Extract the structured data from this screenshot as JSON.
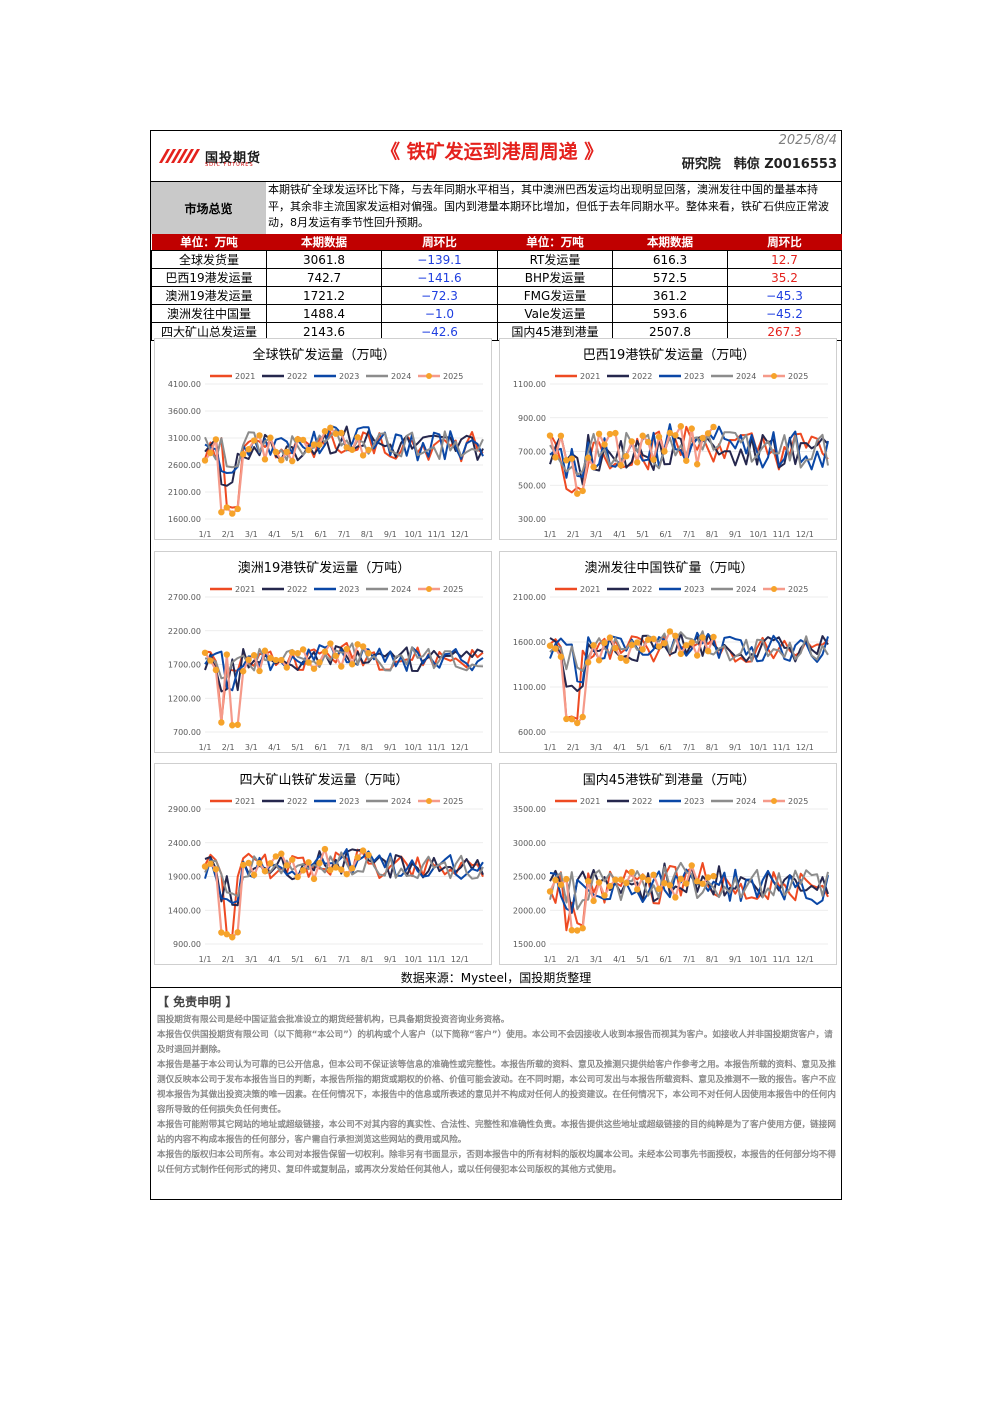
{
  "header": {
    "logo_text": "国投期货",
    "logo_subtext": "SDIC FUTURES",
    "title": "《 铁矿发运到港周周递 》",
    "date": "2025/8/4",
    "author": "研究院　韩倞  Z0016553"
  },
  "summary": {
    "label": "市场总览",
    "text": "本期铁矿全球发运环比下降，与去年同期水平相当，其中澳洲巴西发运均出现明显回落，澳洲发往中国的量基本持平，其余非主流国家发运相对偏强。国内到港量本期环比增加，但低于去年同期水平。整体来看，铁矿石供应正常波动，8月发运有季节性回升预期。"
  },
  "kpi": {
    "headers": [
      "单位：万吨",
      "本期数据",
      "周环比",
      "单位：万吨",
      "本期数据",
      "周环比"
    ],
    "rows": [
      [
        "全球发货量",
        "3061.8",
        "−139.1",
        "RT发运量",
        "616.3",
        "12.7"
      ],
      [
        "巴西19港发运量",
        "742.7",
        "−141.6",
        "BHP发运量",
        "572.5",
        "35.2"
      ],
      [
        "澳洲19港发运量",
        "1721.2",
        "−72.3",
        "FMG发运量",
        "361.2",
        "−45.3"
      ],
      [
        "澳洲发往中国量",
        "1488.4",
        "−1.0",
        "Vale发运量",
        "593.6",
        "−45.2"
      ],
      [
        "四大矿山总发运量",
        "2143.6",
        "−42.6",
        "国内45港到港量",
        "2507.8",
        "267.3"
      ]
    ]
  },
  "legend_colors": {
    "2021": "#ee4a22",
    "2022": "#25274d",
    "2023": "#0a47a6",
    "2024": "#8c8c8c",
    "2025": "#f6a32a",
    "2025_line": "#f59a8a"
  },
  "chart_data": [
    {
      "type": "line",
      "title": "全球铁矿发运量（万吨）",
      "series_names": [
        "2021",
        "2022",
        "2023",
        "2024",
        "2025"
      ],
      "x_ticks": [
        "1/1",
        "2/1",
        "3/1",
        "4/1",
        "5/1",
        "6/1",
        "7/1",
        "8/1",
        "9/1",
        "10/1",
        "11/1",
        "12/1"
      ],
      "y_ticks": [
        "1600.00",
        "2100.00",
        "2600.00",
        "3100.00",
        "3600.00",
        "4100.00"
      ],
      "ylim": [
        1600,
        4100
      ],
      "base": 2950,
      "amp": 280,
      "dip": [
        1700,
        2200,
        2450,
        2550
      ]
    },
    {
      "type": "line",
      "title": "巴西19港铁矿发运量（万吨）",
      "series_names": [
        "2021",
        "2022",
        "2023",
        "2024",
        "2025"
      ],
      "x_ticks": [
        "1/1",
        "2/1",
        "3/1",
        "4/1",
        "5/1",
        "6/1",
        "7/1",
        "8/1",
        "9/1",
        "10/1",
        "11/1",
        "12/1"
      ],
      "y_ticks": [
        "300.00",
        "500.00",
        "700.00",
        "900.00",
        "1100.00"
      ],
      "ylim": [
        300,
        1100
      ],
      "base": 700,
      "amp": 120,
      "dip": [
        450,
        500,
        520,
        560
      ]
    },
    {
      "type": "line",
      "title": "澳洲19港铁矿发运量（万吨）",
      "series_names": [
        "2021",
        "2022",
        "2023",
        "2024",
        "2025"
      ],
      "x_ticks": [
        "1/1",
        "2/1",
        "3/1",
        "4/1",
        "5/1",
        "6/1",
        "7/1",
        "8/1",
        "9/1",
        "10/1",
        "11/1",
        "12/1"
      ],
      "y_ticks": [
        "700.00",
        "1200.00",
        "1700.00",
        "2200.00",
        "2700.00"
      ],
      "ylim": [
        700,
        2700
      ],
      "base": 1780,
      "amp": 180,
      "dip": [
        800,
        1250,
        1300,
        1450
      ]
    },
    {
      "type": "line",
      "title": "澳洲发往中国铁矿量（万吨）",
      "series_names": [
        "2021",
        "2022",
        "2023",
        "2024",
        "2025"
      ],
      "x_ticks": [
        "1/1",
        "2/1",
        "3/1",
        "4/1",
        "5/1",
        "6/1",
        "7/1",
        "8/1",
        "9/1",
        "10/1",
        "11/1",
        "12/1"
      ],
      "y_ticks": [
        "600.00",
        "1100.00",
        "1600.00",
        "2100.00"
      ],
      "ylim": [
        600,
        2100
      ],
      "base": 1520,
      "amp": 150,
      "dip": [
        700,
        1050,
        1150,
        1250
      ]
    },
    {
      "type": "line",
      "title": "四大矿山铁矿发运量（万吨）",
      "series_names": [
        "2021",
        "2022",
        "2023",
        "2024",
        "2025"
      ],
      "x_ticks": [
        "1/1",
        "2/1",
        "3/1",
        "4/1",
        "5/1",
        "6/1",
        "7/1",
        "8/1",
        "9/1",
        "10/1",
        "11/1",
        "12/1"
      ],
      "y_ticks": [
        "900.00",
        "1400.00",
        "1900.00",
        "2400.00",
        "2900.00"
      ],
      "ylim": [
        900,
        2900
      ],
      "base": 2050,
      "amp": 190,
      "dip": [
        1000,
        1450,
        1500,
        1600
      ]
    },
    {
      "type": "line",
      "title": "国内45港铁矿到港量（万吨）",
      "series_names": [
        "2021",
        "2022",
        "2023",
        "2024",
        "2025"
      ],
      "x_ticks": [
        "1/1",
        "2/1",
        "3/1",
        "4/1",
        "5/1",
        "6/1",
        "7/1",
        "8/1",
        "9/1",
        "10/1",
        "11/1",
        "12/1"
      ],
      "y_ticks": [
        "1500.00",
        "2000.00",
        "2500.00",
        "3000.00",
        "3500.00"
      ],
      "ylim": [
        1500,
        3500
      ],
      "base": 2350,
      "amp": 260,
      "dip": [
        1700,
        1850,
        1900,
        2000
      ]
    }
  ],
  "source": "数据来源：Mysteel，国投期货整理",
  "disclaimer": {
    "title": "【 免责申明 】",
    "paragraphs": [
      "国投期货有限公司是经中国证监会批准设立的期货经营机构，已具备期货投资咨询业务资格。",
      "本报告仅供国投期货有限公司（以下简称“本公司”）的机构或个人客户（以下简称“客户”）使用。本公司不会因接收人收到本报告而视其为客户。如接收人并非国投期货客户，请及时退回并删除。",
      "本报告是基于本公司认为可靠的已公开信息，但本公司不保证该等信息的准确性或完整性。本报告所载的资料、意见及推测只提供给客户作参考之用。本报告所载的资料、意见及推测仅反映本公司于发布本报告当日的判断，本报告所指的期货或期权的价格、价值可能会波动。在不同时期，本公司可发出与本报告所载资料、意见及推测不一致的报告。客户不应视本报告为其做出投资决策的唯一因素。在任何情况下，本报告中的信息或所表述的意见并不构成对任何人的投资建议。在任何情况下，本公司不对任何人因使用本报告中的任何内容所导致的任何损失负任何责任。",
      "本报告可能附带其它网站的地址或超级链接，本公司不对其内容的真实性、合法性、完整性和准确性负责。本报告提供这些地址或超级链接的目的纯粹是为了客户使用方便，链接网站的内容不构成本报告的任何部分，客户需自行承担浏览这些网站的费用或风险。",
      "本报告的版权归本公司所有。本公司对本报告保留一切权利。除非另有书面显示，否则本报告中的所有材料的版权均属本公司。未经本公司事先书面授权，本报告的任何部分均不得以任何方式制作任何形式的拷贝、复印件或复制品，或再次分发给任何其他人，或以任何侵犯本公司版权的其他方式使用。"
    ]
  }
}
